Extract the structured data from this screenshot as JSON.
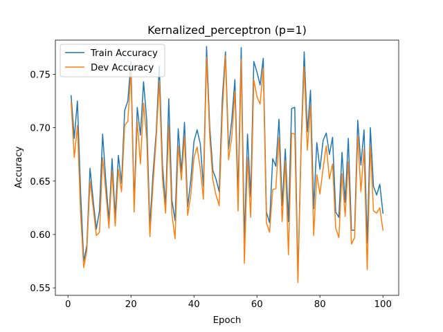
{
  "chart_data": {
    "type": "line",
    "title": "Kernalized_perceptron (p=1)",
    "xlabel": "Epoch",
    "ylabel": "Accuracy",
    "xlim": [
      -4,
      105
    ],
    "ylim": [
      0.543,
      0.782
    ],
    "xticks": [
      0,
      20,
      40,
      60,
      80,
      100
    ],
    "yticks": [
      0.55,
      0.6,
      0.65,
      0.7,
      0.75
    ],
    "ytick_labels": [
      "0.55",
      "0.60",
      "0.65",
      "0.70",
      "0.75"
    ],
    "grid": false,
    "legend_position": "upper-left",
    "x": [
      1,
      2,
      3,
      4,
      5,
      6,
      7,
      8,
      9,
      10,
      11,
      12,
      13,
      14,
      15,
      16,
      17,
      18,
      19,
      20,
      21,
      22,
      23,
      24,
      25,
      26,
      27,
      28,
      29,
      30,
      31,
      32,
      33,
      34,
      35,
      36,
      37,
      38,
      39,
      40,
      41,
      42,
      43,
      44,
      45,
      46,
      47,
      48,
      49,
      50,
      51,
      52,
      53,
      54,
      55,
      56,
      57,
      58,
      59,
      60,
      61,
      62,
      63,
      64,
      65,
      66,
      67,
      68,
      69,
      70,
      71,
      72,
      73,
      74,
      75,
      76,
      77,
      78,
      79,
      80,
      81,
      82,
      83,
      84,
      85,
      86,
      87,
      88,
      89,
      90,
      91,
      92,
      93,
      94,
      95,
      96,
      97,
      98,
      99,
      100
    ],
    "series": [
      {
        "name": "Train Accuracy",
        "color": "#1f77b4",
        "values": [
          0.73,
          0.69,
          0.725,
          0.64,
          0.575,
          0.59,
          0.662,
          0.632,
          0.605,
          0.622,
          0.694,
          0.651,
          0.613,
          0.671,
          0.617,
          0.674,
          0.648,
          0.716,
          0.725,
          0.762,
          0.628,
          0.719,
          0.693,
          0.743,
          0.707,
          0.608,
          0.657,
          0.695,
          0.758,
          0.665,
          0.627,
          0.727,
          0.632,
          0.613,
          0.699,
          0.658,
          0.705,
          0.626,
          0.651,
          0.687,
          0.698,
          0.685,
          0.645,
          0.776,
          0.701,
          0.66,
          0.652,
          0.64,
          0.727,
          0.771,
          0.68,
          0.707,
          0.745,
          0.637,
          0.775,
          0.594,
          0.694,
          0.635,
          0.762,
          0.752,
          0.74,
          0.765,
          0.621,
          0.611,
          0.671,
          0.664,
          0.708,
          0.627,
          0.68,
          0.612,
          0.718,
          0.719,
          0.56,
          0.683,
          0.771,
          0.696,
          0.735,
          0.624,
          0.686,
          0.661,
          0.688,
          0.695,
          0.675,
          0.691,
          0.621,
          0.616,
          0.677,
          0.63,
          0.69,
          0.604,
          0.604,
          0.707,
          0.665,
          0.698,
          0.592,
          0.7,
          0.645,
          0.637,
          0.647,
          0.62
        ]
      },
      {
        "name": "Dev Accuracy",
        "color": "#ff7f0e",
        "values": [
          0.724,
          0.672,
          0.702,
          0.62,
          0.569,
          0.585,
          0.65,
          0.625,
          0.599,
          0.602,
          0.672,
          0.64,
          0.606,
          0.66,
          0.608,
          0.661,
          0.64,
          0.702,
          0.706,
          0.752,
          0.621,
          0.706,
          0.666,
          0.723,
          0.69,
          0.598,
          0.647,
          0.689,
          0.744,
          0.652,
          0.62,
          0.703,
          0.619,
          0.596,
          0.683,
          0.651,
          0.692,
          0.618,
          0.637,
          0.672,
          0.682,
          0.662,
          0.633,
          0.766,
          0.692,
          0.651,
          0.637,
          0.627,
          0.714,
          0.767,
          0.67,
          0.691,
          0.734,
          0.622,
          0.764,
          0.573,
          0.672,
          0.616,
          0.745,
          0.729,
          0.722,
          0.756,
          0.611,
          0.602,
          0.642,
          0.643,
          0.691,
          0.612,
          0.669,
          0.581,
          0.695,
          0.694,
          0.555,
          0.679,
          0.757,
          0.679,
          0.721,
          0.599,
          0.656,
          0.638,
          0.662,
          0.683,
          0.652,
          0.666,
          0.606,
          0.597,
          0.657,
          0.617,
          0.668,
          0.591,
          0.597,
          0.692,
          0.64,
          0.68,
          0.567,
          0.683,
          0.622,
          0.62,
          0.625,
          0.604
        ]
      }
    ]
  }
}
